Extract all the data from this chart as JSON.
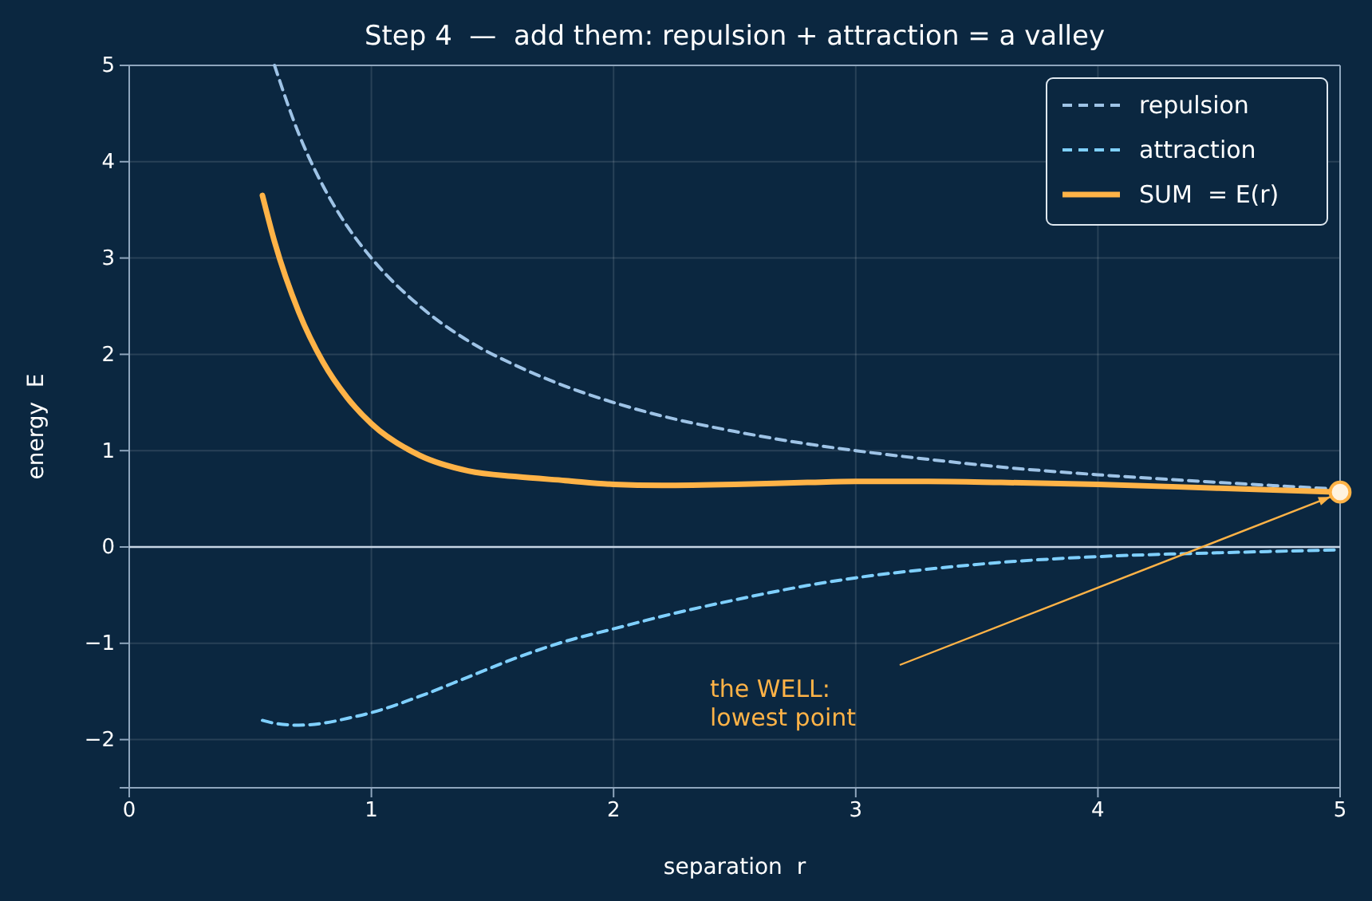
{
  "chart_data": {
    "type": "line",
    "title": "Step 4  —  add them: repulsion + attraction = a valley",
    "xlabel": "separation  r",
    "ylabel": "energy  E",
    "xlim": [
      0,
      5
    ],
    "ylim": [
      -2.5,
      5
    ],
    "xticks": [
      0,
      1,
      2,
      3,
      4,
      5
    ],
    "yticks": [
      {
        "value": -2,
        "label": "−2"
      },
      {
        "value": -1,
        "label": "−1"
      },
      0,
      1,
      2,
      3,
      4,
      5
    ],
    "grid": true,
    "legend": "top right",
    "ref_lines": [
      {
        "axis": "y",
        "value": 0,
        "color": "#c8d6e5"
      }
    ],
    "annotations": [
      "the WELL:\nlowest point"
    ],
    "series": [
      {
        "name": "repulsion",
        "color": "#9ec3e6",
        "line_style": "dashed",
        "x": [
          0.6,
          0.7,
          0.8,
          0.9,
          1,
          1.2,
          1.4,
          1.6,
          1.8,
          2,
          2.2,
          2.5,
          2.8,
          3,
          3.3,
          3.6,
          4,
          4.5,
          5
        ],
        "values": [
          5,
          4.29,
          3.75,
          3.33,
          3,
          2.5,
          2.14,
          1.88,
          1.67,
          1.5,
          1.36,
          1.2,
          1.07,
          1,
          0.91,
          0.83,
          0.75,
          0.67,
          0.6
        ]
      },
      {
        "name": "attraction",
        "color": "#7fd0ff",
        "line_style": "dashed",
        "x": [
          0.55,
          0.6,
          0.7,
          0.8,
          0.9,
          1,
          1.2,
          1.4,
          1.6,
          1.8,
          2,
          2.2,
          2.5,
          2.8,
          3,
          3.3,
          3.6,
          4,
          4.5,
          5
        ],
        "values": [
          -1.8,
          -1.83,
          -1.85,
          -1.83,
          -1.78,
          -1.72,
          -1.55,
          -1.35,
          -1.15,
          -0.98,
          -0.85,
          -0.72,
          -0.55,
          -0.4,
          -0.32,
          -0.23,
          -0.16,
          -0.1,
          -0.06,
          -0.03
        ]
      },
      {
        "name": "SUM  = E(r)",
        "color": "#ffb347",
        "line_style": "solid",
        "x": [
          0.55,
          0.6,
          0.7,
          0.8,
          0.9,
          1,
          1.2,
          1.4,
          1.6,
          1.8,
          2,
          2.2,
          2.5,
          2.8,
          3,
          3.3,
          3.6,
          4,
          4.5,
          5
        ],
        "values": [
          3.65,
          3.17,
          2.44,
          1.92,
          1.55,
          1.28,
          0.95,
          0.79,
          0.73,
          0.69,
          0.65,
          0.64,
          0.65,
          0.67,
          0.68,
          0.68,
          0.67,
          0.65,
          0.61,
          0.57
        ]
      },
      {
        "type": "scatter",
        "marker": "circle",
        "color": "#fff3e0",
        "x": [
          5
        ],
        "values": [
          0.57
        ]
      }
    ]
  }
}
